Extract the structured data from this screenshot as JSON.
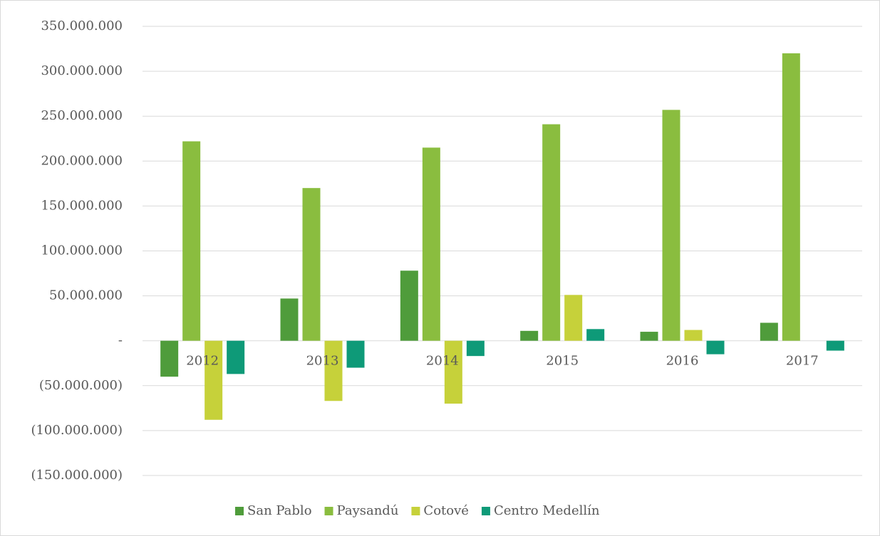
{
  "chart_data": {
    "type": "bar",
    "categories": [
      "2012",
      "2013",
      "2014",
      "2015",
      "2016",
      "2017"
    ],
    "series": [
      {
        "name": "San Pablo",
        "color": "#4f9c3b",
        "values": [
          -40000000,
          47000000,
          78000000,
          11000000,
          10000000,
          20000000
        ]
      },
      {
        "name": "Paysandú",
        "color": "#8abd3f",
        "values": [
          222000000,
          170000000,
          215000000,
          241000000,
          257000000,
          320000000
        ]
      },
      {
        "name": "Cotové",
        "color": "#c6d13a",
        "values": [
          -88000000,
          -67000000,
          -70000000,
          51000000,
          12000000,
          0
        ]
      },
      {
        "name": "Centro Medellín",
        "color": "#0e9a78",
        "values": [
          -37000000,
          -30000000,
          -17000000,
          13000000,
          -15000000,
          -11000000
        ]
      }
    ],
    "ylim": [
      -150000000,
      350000000
    ],
    "yticks": [
      {
        "value": 350000000,
        "label": "350.000.000"
      },
      {
        "value": 300000000,
        "label": "300.000.000"
      },
      {
        "value": 250000000,
        "label": "250.000.000"
      },
      {
        "value": 200000000,
        "label": "200.000.000"
      },
      {
        "value": 150000000,
        "label": "150.000.000"
      },
      {
        "value": 100000000,
        "label": "100.000.000"
      },
      {
        "value": 50000000,
        "label": "50.000.000"
      },
      {
        "value": 0,
        "label": "-"
      },
      {
        "value": -50000000,
        "label": "(50.000.000)"
      },
      {
        "value": -100000000,
        "label": "(100.000.000)"
      },
      {
        "value": -150000000,
        "label": "(150.000.000)"
      }
    ],
    "grid": true,
    "legend": "bottom"
  }
}
